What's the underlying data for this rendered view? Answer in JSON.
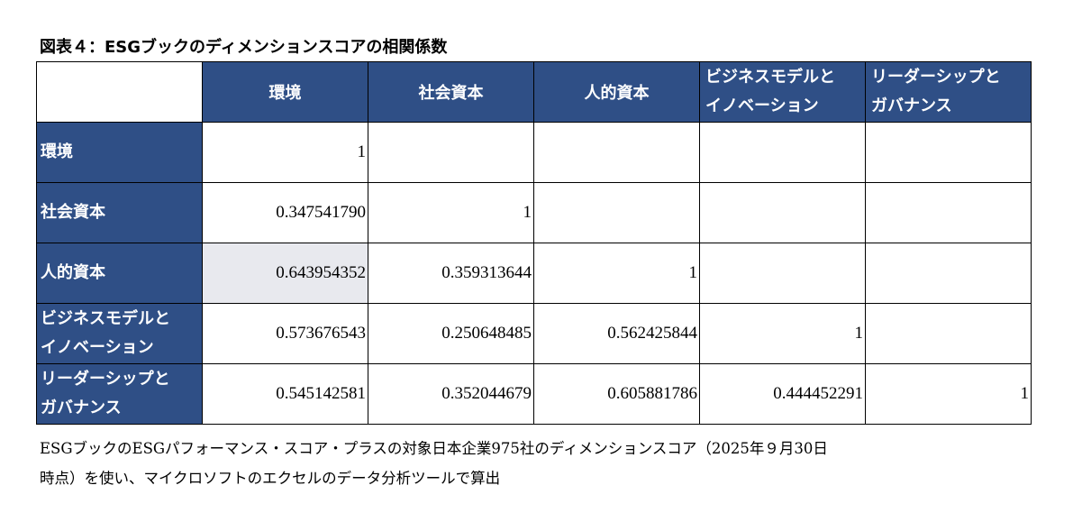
{
  "title": "図表４：ESGブックのディメンションスコアの相関係数",
  "table": {
    "columns": [
      "環境",
      "社会資本",
      "人的資本",
      "ビジネスモデルと\nイノベーション",
      "リーダーシップと\nガバナンス"
    ],
    "rows": [
      {
        "label": "環境",
        "values": [
          "1",
          "",
          "",
          "",
          ""
        ]
      },
      {
        "label": "社会資本",
        "values": [
          "0.347541790",
          "1",
          "",
          "",
          ""
        ]
      },
      {
        "label": "人的資本",
        "values": [
          "0.643954352",
          "0.359313644",
          "1",
          "",
          ""
        ]
      },
      {
        "label": "ビジネスモデルと\nイノベーション",
        "values": [
          "0.573676543",
          "0.250648485",
          "0.562425844",
          "1",
          ""
        ]
      },
      {
        "label": "リーダーシップと\nガバナンス",
        "values": [
          "0.545142581",
          "0.352044679",
          "0.605881786",
          "0.444452291",
          "1"
        ]
      }
    ],
    "header_color": "#2f4f86",
    "highlight_color": "#e8e9ee"
  },
  "note": {
    "line1": "ESGブックのESGパフォーマンス・スコア・プラスの対象日本企業975社のディメンションスコア（2025年９月30日",
    "line2": "時点）を使い、マイクロソフトのエクセルのデータ分析ツールで算出"
  }
}
